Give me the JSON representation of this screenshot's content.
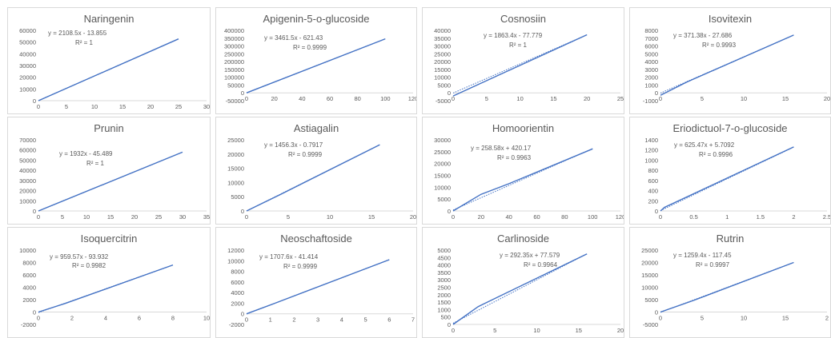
{
  "colors": {
    "line": "#4472c4",
    "axis": "#d9d9d9",
    "text": "#595959",
    "border": "#d9d9d9"
  },
  "chart_data": [
    {
      "type": "line",
      "title": "Naringenin",
      "equation": "y = 2108.5x - 13.855",
      "r2": "R² = 1",
      "x_ticks": [
        "0",
        "5",
        "10",
        "15",
        "20",
        "25",
        "30"
      ],
      "y_ticks": [
        "0",
        "10000",
        "20000",
        "30000",
        "40000",
        "50000",
        "60000"
      ],
      "xlim": [
        0,
        30
      ],
      "ylim": [
        0,
        60000
      ],
      "series": [
        {
          "x": [
            0,
            25
          ],
          "y": [
            0,
            52700
          ],
          "style": "solid"
        },
        {
          "x": [
            0,
            25
          ],
          "y": [
            -14,
            52699
          ],
          "style": "dotted"
        }
      ]
    },
    {
      "type": "line",
      "title": "Apigenin-5-o-glucoside",
      "equation": "y = 3461.5x - 621.43",
      "r2": "R² = 0.9999",
      "x_ticks": [
        "0",
        "20",
        "40",
        "60",
        "80",
        "100",
        "120"
      ],
      "y_ticks": [
        "-50000",
        "0",
        "50000",
        "100000",
        "150000",
        "200000",
        "250000",
        "300000",
        "350000",
        "400000"
      ],
      "xlim": [
        0,
        120
      ],
      "ylim": [
        -50000,
        400000
      ],
      "series": [
        {
          "x": [
            0,
            100
          ],
          "y": [
            0,
            346000
          ],
          "style": "solid"
        },
        {
          "x": [
            0,
            100
          ],
          "y": [
            -621,
            345529
          ],
          "style": "dotted"
        }
      ]
    },
    {
      "type": "line",
      "title": "Cosnosiin",
      "equation": "y = 1863.4x - 77.779",
      "r2": "R² = 1",
      "x_ticks": [
        "0",
        "5",
        "10",
        "15",
        "20",
        "25"
      ],
      "y_ticks": [
        "-5000",
        "0",
        "5000",
        "10000",
        "15000",
        "20000",
        "25000",
        "30000",
        "35000",
        "40000"
      ],
      "xlim": [
        0,
        25
      ],
      "ylim": [
        -5000,
        40000
      ],
      "series": [
        {
          "x": [
            0,
            20
          ],
          "y": [
            -2000,
            37200
          ],
          "style": "solid"
        },
        {
          "x": [
            0,
            20
          ],
          "y": [
            -78,
            37190
          ],
          "style": "dotted"
        }
      ]
    },
    {
      "type": "line",
      "title": "Isovitexin",
      "equation": "y = 371.38x - 27.686",
      "r2": "R² = 0.9993",
      "x_ticks": [
        "0",
        "5",
        "10",
        "15",
        "20"
      ],
      "y_ticks": [
        "-1000",
        "0",
        "1000",
        "2000",
        "3000",
        "4000",
        "5000",
        "6000",
        "7000",
        "8000"
      ],
      "xlim": [
        0,
        25
      ],
      "ylim": [
        -1000,
        8000
      ],
      "series": [
        {
          "x": [
            0,
            4,
            20
          ],
          "y": [
            -300,
            1400,
            7400
          ],
          "style": "solid"
        },
        {
          "x": [
            0,
            20
          ],
          "y": [
            -28,
            7400
          ],
          "style": "dotted"
        }
      ]
    },
    {
      "type": "line",
      "title": "Prunin",
      "equation": "y = 1932x - 45.489",
      "r2": "R² = 1",
      "x_ticks": [
        "0",
        "5",
        "10",
        "15",
        "20",
        "25",
        "30",
        "35"
      ],
      "y_ticks": [
        "0",
        "10000",
        "20000",
        "30000",
        "40000",
        "50000",
        "60000",
        "70000"
      ],
      "xlim": [
        0,
        35
      ],
      "ylim": [
        0,
        70000
      ],
      "series": [
        {
          "x": [
            0,
            30
          ],
          "y": [
            0,
            57900
          ],
          "style": "solid"
        },
        {
          "x": [
            0,
            30
          ],
          "y": [
            -45,
            57915
          ],
          "style": "dotted"
        }
      ]
    },
    {
      "type": "line",
      "title": "Astiagalin",
      "equation": "y = 1456.3x - 0.7917",
      "r2": "R² = 0.9999",
      "x_ticks": [
        "0",
        "5",
        "10",
        "15",
        "20"
      ],
      "y_ticks": [
        "0",
        "5000",
        "10000",
        "15000",
        "20000",
        "25000"
      ],
      "xlim": [
        0,
        20
      ],
      "ylim": [
        0,
        25000
      ],
      "series": [
        {
          "x": [
            0,
            4,
            16
          ],
          "y": [
            0,
            5700,
            23300
          ],
          "style": "solid"
        },
        {
          "x": [
            0,
            16
          ],
          "y": [
            -1,
            23300
          ],
          "style": "dotted"
        }
      ]
    },
    {
      "type": "line",
      "title": "Homoorientin",
      "equation": "y = 258.58x + 420.17",
      "r2": "R² = 0.9963",
      "x_ticks": [
        "0",
        "20",
        "40",
        "60",
        "80",
        "100",
        "120"
      ],
      "y_ticks": [
        "0",
        "5000",
        "10000",
        "15000",
        "20000",
        "25000",
        "30000"
      ],
      "xlim": [
        0,
        120
      ],
      "ylim": [
        0,
        30000
      ],
      "series": [
        {
          "x": [
            0,
            20,
            40,
            100
          ],
          "y": [
            0,
            7000,
            11500,
            26200
          ],
          "style": "solid"
        },
        {
          "x": [
            0,
            100
          ],
          "y": [
            420,
            26278
          ],
          "style": "dotted"
        }
      ]
    },
    {
      "type": "line",
      "title": "Eriodictuol-7-o-glucoside",
      "equation": "y = 625.47x + 5.7092",
      "r2": "R² = 0.9996",
      "x_ticks": [
        "0",
        "0.5",
        "1",
        "1.5",
        "2",
        "2.5"
      ],
      "y_ticks": [
        "0",
        "200",
        "400",
        "600",
        "800",
        "1000",
        "1200",
        "1400"
      ],
      "xlim": [
        0,
        2.5
      ],
      "ylim": [
        0,
        1400
      ],
      "series": [
        {
          "x": [
            0,
            0.06,
            2
          ],
          "y": [
            0,
            70,
            1260
          ],
          "style": "solid"
        },
        {
          "x": [
            0,
            2
          ],
          "y": [
            6,
            1257
          ],
          "style": "dotted"
        }
      ]
    },
    {
      "type": "line",
      "title": "Isoquercitrin",
      "equation": "y = 959.57x - 93.932",
      "r2": "R² = 0.9982",
      "x_ticks": [
        "0",
        "2",
        "4",
        "6",
        "8",
        "10"
      ],
      "y_ticks": [
        "-2000",
        "0",
        "2000",
        "4000",
        "6000",
        "8000",
        "10000"
      ],
      "xlim": [
        0,
        10
      ],
      "ylim": [
        -2000,
        10000
      ],
      "series": [
        {
          "x": [
            0,
            1.6,
            8
          ],
          "y": [
            0,
            1400,
            7600
          ],
          "style": "solid"
        },
        {
          "x": [
            0,
            8
          ],
          "y": [
            -94,
            7583
          ],
          "style": "dotted"
        }
      ]
    },
    {
      "type": "line",
      "title": "Neoschaftoside",
      "equation": "y = 1707.6x - 41.414",
      "r2": "R² = 0.9999",
      "x_ticks": [
        "0",
        "1",
        "2",
        "3",
        "4",
        "5",
        "6",
        "7"
      ],
      "y_ticks": [
        "-2000",
        "0",
        "2000",
        "4000",
        "6000",
        "8000",
        "10000",
        "12000"
      ],
      "xlim": [
        0,
        7
      ],
      "ylim": [
        -2000,
        12000
      ],
      "series": [
        {
          "x": [
            0,
            1.2,
            6
          ],
          "y": [
            0,
            2000,
            10200
          ],
          "style": "solid"
        },
        {
          "x": [
            0,
            6
          ],
          "y": [
            -41,
            10204
          ],
          "style": "dotted"
        }
      ]
    },
    {
      "type": "line",
      "title": "Carlinoside",
      "equation": "y = 292.35x + 77.579",
      "r2": "R² = 0.9964",
      "x_ticks": [
        "0",
        "5",
        "10",
        "15",
        "20"
      ],
      "y_ticks": [
        "0",
        "500",
        "1000",
        "1500",
        "2000",
        "2500",
        "3000",
        "3500",
        "4000",
        "4500",
        "5000"
      ],
      "xlim": [
        0,
        20
      ],
      "ylim": [
        0,
        5000
      ],
      "series": [
        {
          "x": [
            0,
            3,
            16
          ],
          "y": [
            0,
            1200,
            4750
          ],
          "style": "solid"
        },
        {
          "x": [
            0,
            16
          ],
          "y": [
            78,
            4755
          ],
          "style": "dotted"
        }
      ]
    },
    {
      "type": "line",
      "title": "Rutrin",
      "equation": "y = 1259.4x - 117.45",
      "r2": "R² = 0.9997",
      "x_ticks": [
        "0",
        "5",
        "10",
        "15",
        "2"
      ],
      "y_ticks": [
        "-5000",
        "0",
        "5000",
        "10000",
        "15000",
        "20000",
        "25000"
      ],
      "xlim": [
        0,
        20
      ],
      "ylim": [
        -5000,
        25000
      ],
      "series": [
        {
          "x": [
            0,
            4,
            16
          ],
          "y": [
            0,
            4700,
            20000
          ],
          "style": "solid"
        },
        {
          "x": [
            0,
            16
          ],
          "y": [
            -117,
            20033
          ],
          "style": "dotted"
        }
      ]
    }
  ]
}
